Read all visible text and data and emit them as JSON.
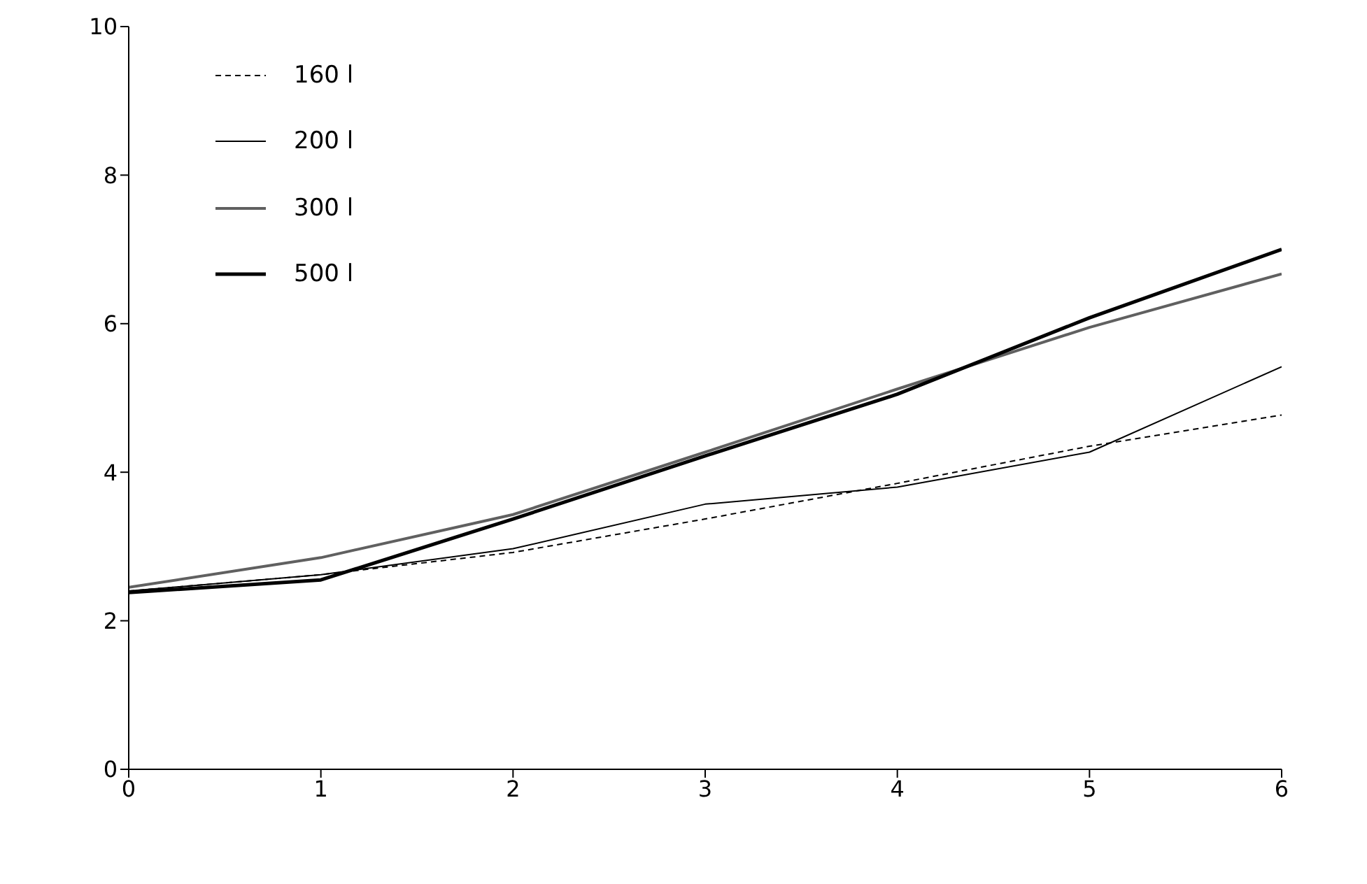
{
  "chart_data": {
    "type": "line",
    "x": [
      0,
      1,
      2,
      3,
      4,
      5,
      6
    ],
    "xlim": [
      0,
      6
    ],
    "xticks": [
      0,
      1,
      2,
      3,
      4,
      5,
      6
    ],
    "ylim": [
      0,
      10
    ],
    "yticks": [
      0,
      2,
      4,
      6,
      8,
      10
    ],
    "grid": false,
    "legend": "top left",
    "marker": "none",
    "series": [
      {
        "name": "160 l",
        "color": "#000000",
        "line_style": "dashed",
        "values": [
          2.4,
          2.62,
          2.92,
          3.37,
          3.85,
          4.35,
          4.77
        ]
      },
      {
        "name": "200 l",
        "color": "#000000",
        "line_style": "solid",
        "values": [
          2.4,
          2.62,
          2.97,
          3.57,
          3.8,
          4.27,
          5.42
        ]
      },
      {
        "name": "300 l",
        "color": "#606060",
        "line_style": "solid",
        "values": [
          2.45,
          2.85,
          3.43,
          4.27,
          5.12,
          5.95,
          6.67
        ]
      },
      {
        "name": "500 l",
        "color": "#000000",
        "line_style": "solid",
        "values": [
          2.38,
          2.55,
          3.37,
          4.22,
          5.05,
          6.08,
          7.0
        ]
      }
    ]
  }
}
